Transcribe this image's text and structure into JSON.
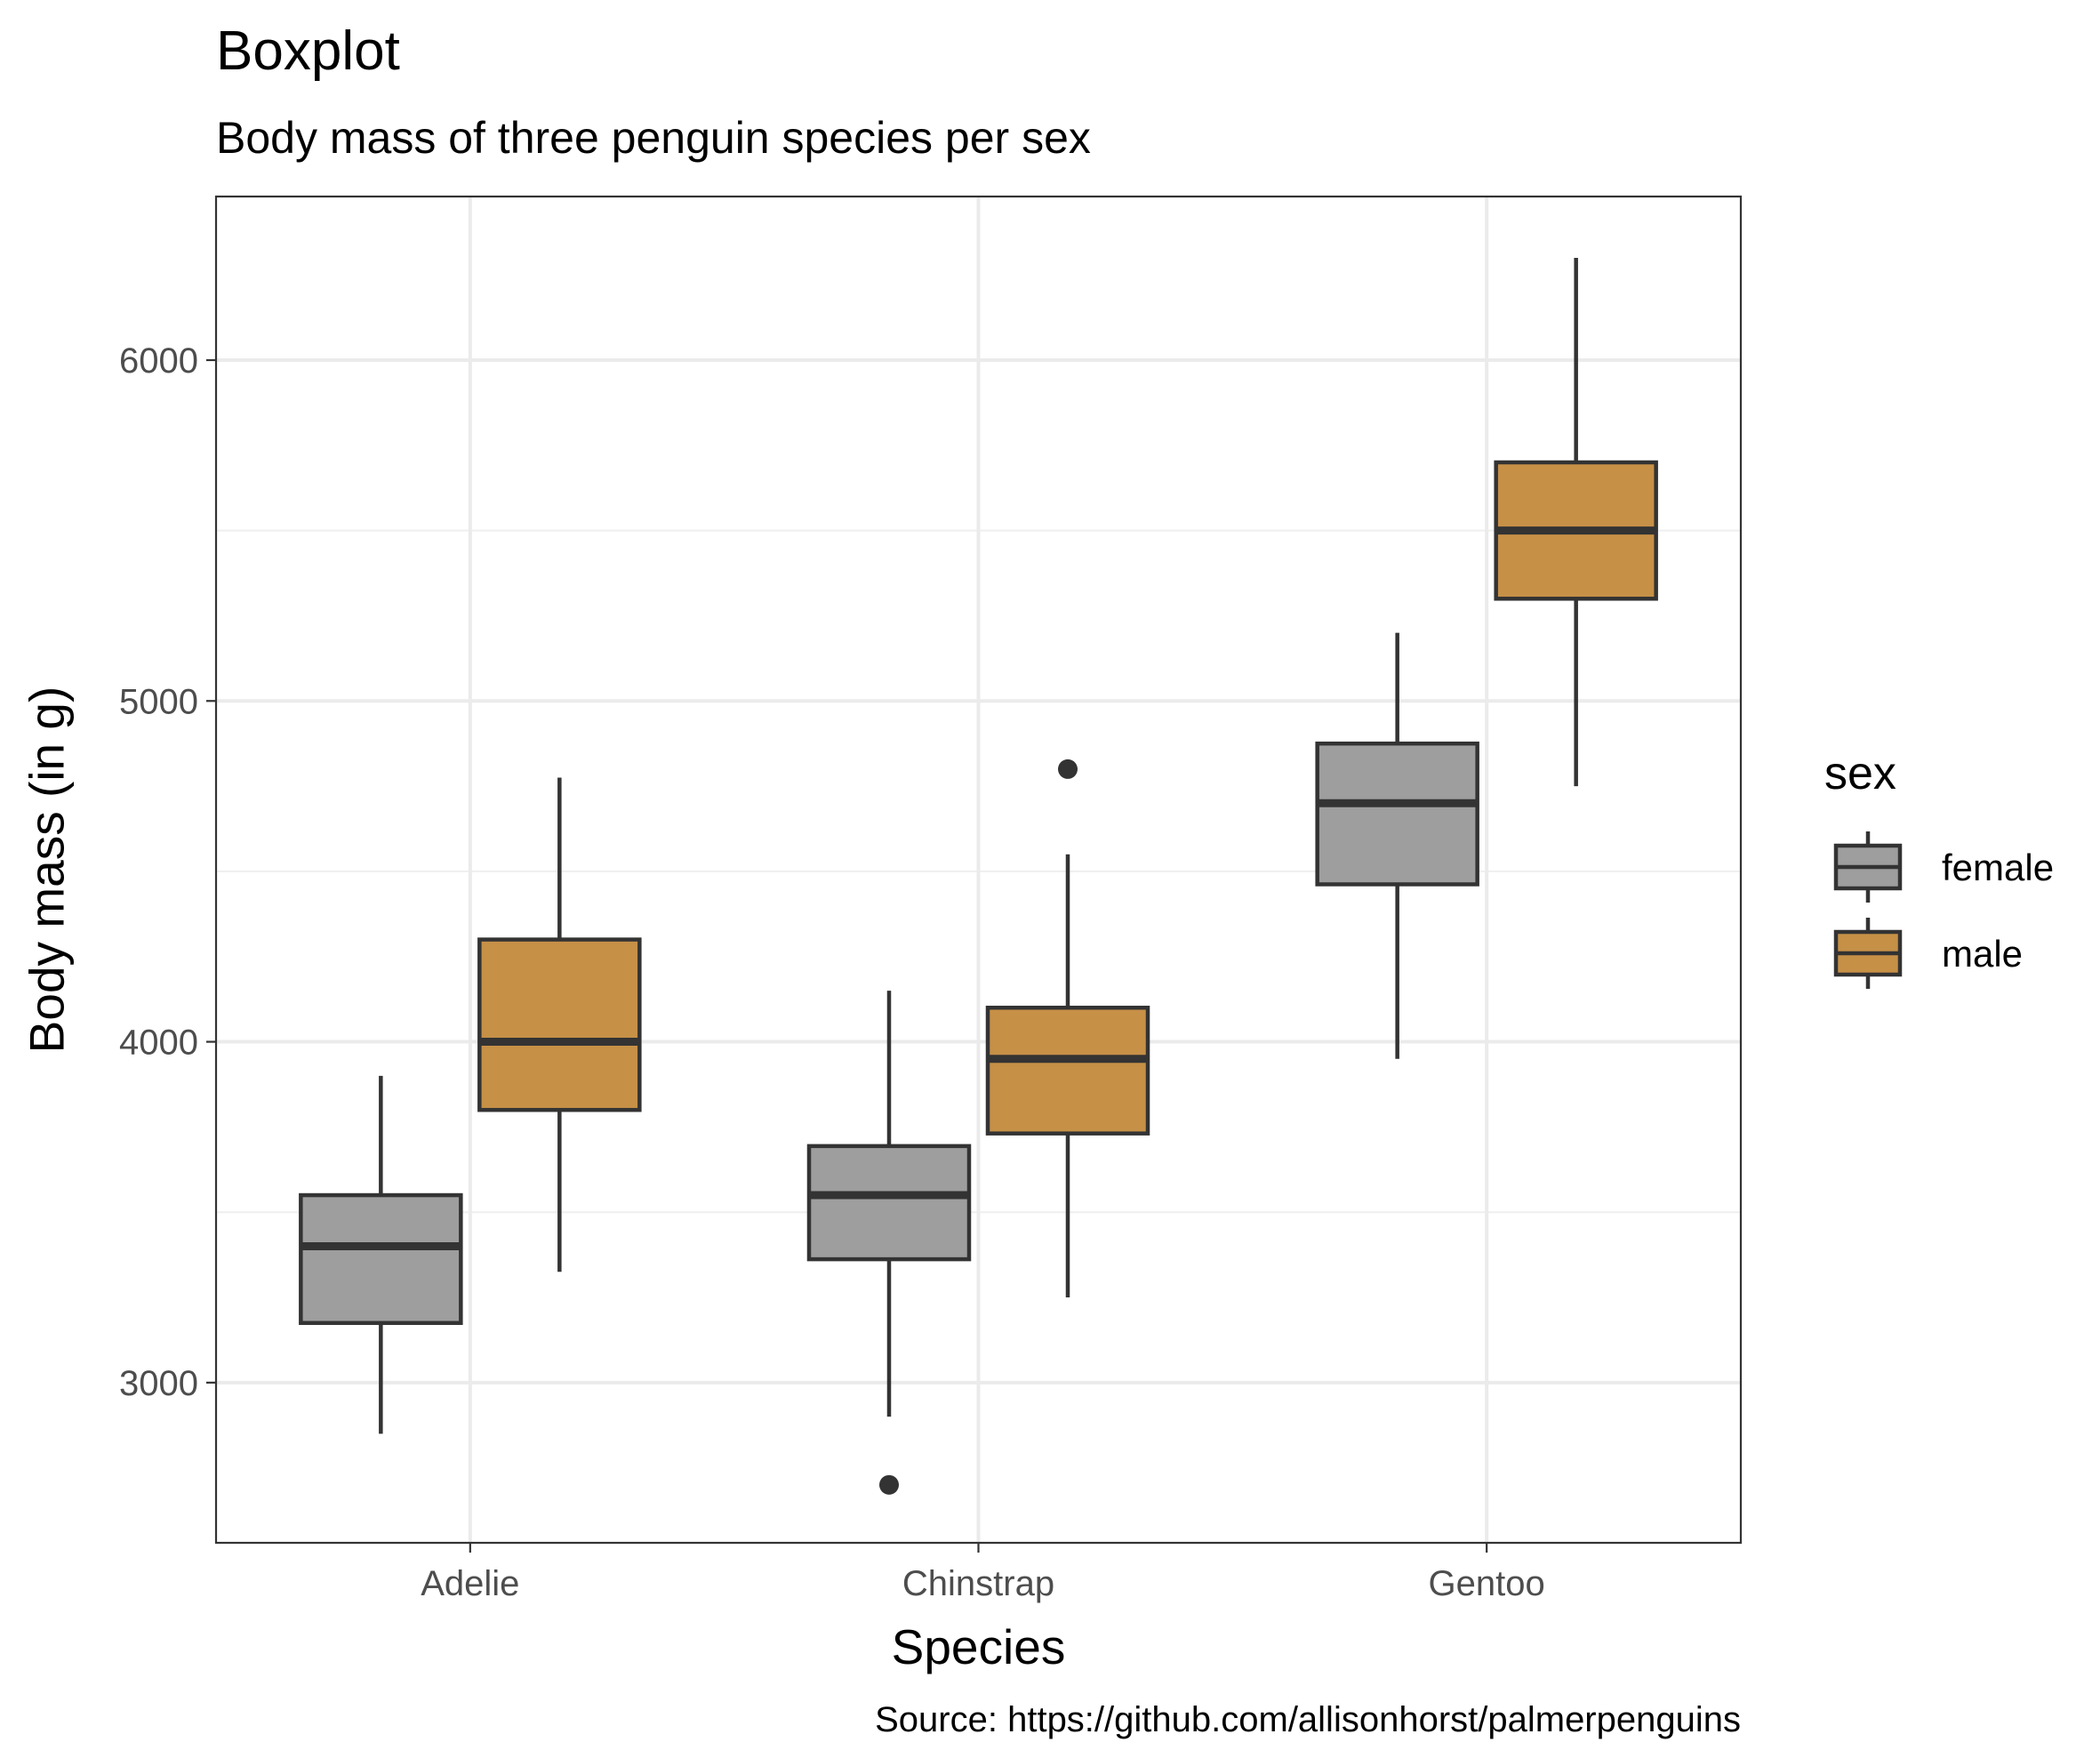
{
  "chart_data": {
    "type": "boxplot",
    "title": "Boxplot",
    "subtitle": "Body mass of three penguin species per sex",
    "xlabel": "Species",
    "ylabel": "Body mass (in g)",
    "caption": "Source: https://github.com/allisonhorst/palmerpenguins",
    "categories": [
      "Adelie",
      "Chinstrap",
      "Gentoo"
    ],
    "yticks": [
      3000,
      4000,
      5000,
      6000
    ],
    "ylim": [
      2530,
      6480
    ],
    "grid": true,
    "legend": {
      "title": "sex",
      "position": "right"
    },
    "series": [
      {
        "name": "female",
        "color": "#9e9e9e",
        "boxes": [
          {
            "category": "Adelie",
            "whisker_low": 2850,
            "q1": 3175,
            "median": 3400,
            "q3": 3550,
            "whisker_high": 3900,
            "outliers": []
          },
          {
            "category": "Chinstrap",
            "whisker_low": 2900,
            "q1": 3362,
            "median": 3550,
            "q3": 3694,
            "whisker_high": 4150,
            "outliers": [
              2700
            ]
          },
          {
            "category": "Gentoo",
            "whisker_low": 3950,
            "q1": 4462,
            "median": 4700,
            "q3": 4875,
            "whisker_high": 5200,
            "outliers": []
          }
        ]
      },
      {
        "name": "male",
        "color": "#c69047",
        "boxes": [
          {
            "category": "Adelie",
            "whisker_low": 3325,
            "q1": 3800,
            "median": 4000,
            "q3": 4300,
            "whisker_high": 4775,
            "outliers": []
          },
          {
            "category": "Chinstrap",
            "whisker_low": 3250,
            "q1": 3731,
            "median": 3950,
            "q3": 4100,
            "whisker_high": 4550,
            "outliers": [
              4800
            ]
          },
          {
            "category": "Gentoo",
            "whisker_low": 4750,
            "q1": 5300,
            "median": 5500,
            "q3": 5700,
            "whisker_high": 6300,
            "outliers": []
          }
        ]
      }
    ]
  }
}
